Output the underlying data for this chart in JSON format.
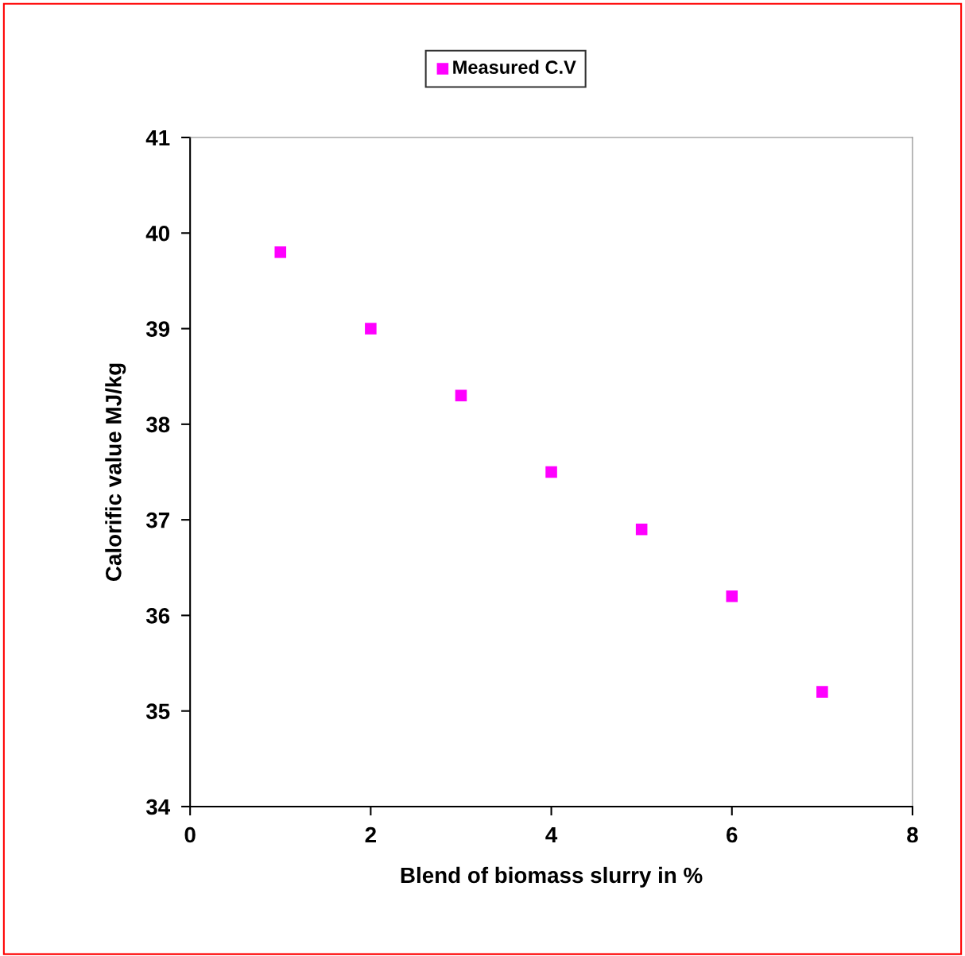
{
  "chart_data": {
    "type": "scatter",
    "xlabel": "Blend of biomass slurry in %",
    "ylabel": "Calorific value MJ/kg",
    "x": [
      1,
      2,
      3,
      4,
      5,
      6,
      7
    ],
    "series": [
      {
        "name": "Measured C.V",
        "color": "#ff00ff",
        "values": [
          39.8,
          39.0,
          38.3,
          37.5,
          36.9,
          36.2,
          35.2
        ]
      }
    ],
    "xlim": [
      0,
      8
    ],
    "xticks": [
      0,
      2,
      4,
      6,
      8
    ],
    "ylim": [
      34,
      41
    ],
    "yticks": [
      34,
      35,
      36,
      37,
      38,
      39,
      40,
      41
    ],
    "marker": "square",
    "grid": false,
    "legend": "top"
  }
}
